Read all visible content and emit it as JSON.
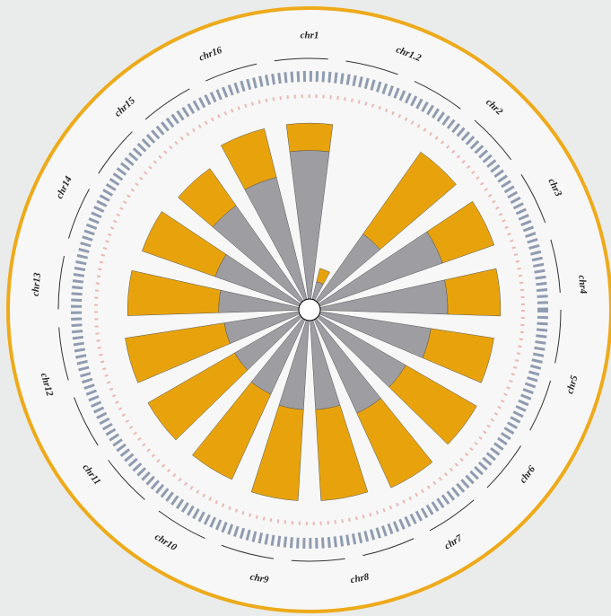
{
  "chart_data": {
    "type": "radial-stacked-bar",
    "categories": [
      "chr1",
      "chr1.2",
      "chr2",
      "chr3",
      "chr4",
      "chr5",
      "chr6",
      "chr7",
      "chr8",
      "chr9",
      "chr10",
      "chr11",
      "chr12",
      "chr13",
      "chr14",
      "chr15",
      "chr16"
    ],
    "series": [
      {
        "color": "#9e9da2",
        "values": [
          163,
          20,
          90,
          143,
          140,
          123,
          110,
          113,
          98,
          98,
          90,
          83,
          83,
          88,
          98,
          128,
          138
        ]
      },
      {
        "color": "#e8a30c",
        "values": [
          30,
          15,
          110,
          60,
          58,
          70,
          90,
          90,
          100,
          100,
          103,
          110,
          110,
          100,
          85,
          50,
          55
        ]
      }
    ],
    "ylim": [
      0,
      200
    ]
  }
}
